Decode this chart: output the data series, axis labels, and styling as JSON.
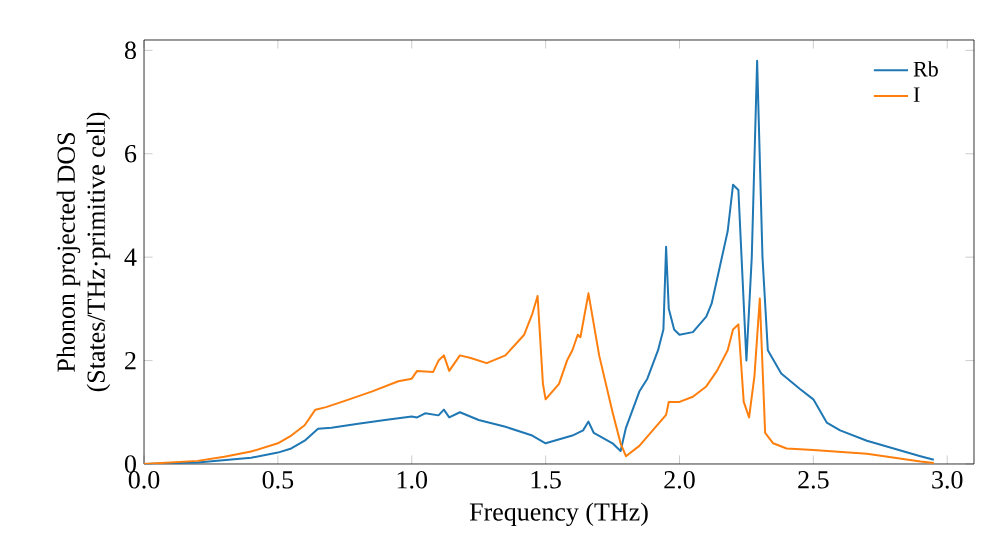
{
  "chart_data": {
    "type": "line",
    "xlabel": "Frequency (THz)",
    "ylabel": "Phonon projected DOS\n(States/THz·primitive cell)",
    "xlim": [
      0,
      3.1
    ],
    "ylim": [
      0,
      8.2
    ],
    "xticks": [
      {
        "value": 0,
        "label": "0.0"
      },
      0.5,
      {
        "value": 1,
        "label": "1.0"
      },
      1.5,
      {
        "value": 2,
        "label": "2.0"
      },
      2.5,
      {
        "value": 3,
        "label": "3.0"
      }
    ],
    "yticks": [
      0,
      2,
      4,
      6,
      8
    ],
    "legend": "top right",
    "grid": false,
    "series": [
      {
        "name": "Rb",
        "color": "#1f77b4",
        "x": [
          0,
          0.2,
          0.4,
          0.5,
          0.55,
          0.6,
          0.65,
          0.7,
          0.8,
          0.9,
          1.0,
          1.02,
          1.05,
          1.1,
          1.12,
          1.14,
          1.18,
          1.25,
          1.35,
          1.45,
          1.5,
          1.6,
          1.64,
          1.66,
          1.68,
          1.75,
          1.78,
          1.8,
          1.85,
          1.88,
          1.92,
          1.94,
          1.95,
          1.96,
          1.98,
          2.0,
          2.05,
          2.1,
          2.12,
          2.15,
          2.18,
          2.2,
          2.22,
          2.25,
          2.27,
          2.29,
          2.31,
          2.33,
          2.38,
          2.45,
          2.5,
          2.55,
          2.6,
          2.7,
          2.8,
          2.9,
          2.95
        ],
        "values": [
          0,
          0.03,
          0.12,
          0.22,
          0.3,
          0.45,
          0.68,
          0.7,
          0.78,
          0.85,
          0.92,
          0.9,
          0.98,
          0.94,
          1.05,
          0.9,
          1.0,
          0.85,
          0.72,
          0.55,
          0.4,
          0.55,
          0.65,
          0.82,
          0.6,
          0.4,
          0.25,
          0.7,
          1.4,
          1.65,
          2.2,
          2.6,
          4.2,
          3.0,
          2.6,
          2.5,
          2.55,
          2.85,
          3.1,
          3.8,
          4.5,
          5.4,
          5.3,
          2.0,
          4.0,
          7.8,
          4.0,
          2.2,
          1.75,
          1.45,
          1.25,
          0.8,
          0.65,
          0.45,
          0.3,
          0.15,
          0.08
        ]
      },
      {
        "name": "I",
        "color": "#ff7f0e",
        "x": [
          0,
          0.2,
          0.3,
          0.4,
          0.5,
          0.55,
          0.6,
          0.64,
          0.68,
          0.75,
          0.85,
          0.95,
          1.0,
          1.02,
          1.08,
          1.1,
          1.12,
          1.14,
          1.18,
          1.22,
          1.28,
          1.35,
          1.42,
          1.45,
          1.47,
          1.49,
          1.5,
          1.55,
          1.58,
          1.6,
          1.62,
          1.63,
          1.66,
          1.7,
          1.75,
          1.78,
          1.8,
          1.85,
          1.9,
          1.95,
          1.96,
          2.0,
          2.05,
          2.1,
          2.14,
          2.18,
          2.2,
          2.22,
          2.24,
          2.26,
          2.28,
          2.3,
          2.32,
          2.35,
          2.4,
          2.5,
          2.7,
          2.9,
          2.95
        ],
        "values": [
          0,
          0.06,
          0.14,
          0.24,
          0.4,
          0.55,
          0.75,
          1.05,
          1.1,
          1.22,
          1.4,
          1.6,
          1.65,
          1.8,
          1.78,
          2.0,
          2.1,
          1.8,
          2.1,
          2.05,
          1.95,
          2.1,
          2.5,
          2.9,
          3.25,
          1.55,
          1.25,
          1.55,
          2.0,
          2.2,
          2.5,
          2.45,
          3.3,
          2.1,
          1.0,
          0.4,
          0.15,
          0.35,
          0.65,
          0.95,
          1.2,
          1.2,
          1.3,
          1.5,
          1.8,
          2.2,
          2.6,
          2.7,
          1.2,
          0.9,
          1.7,
          3.2,
          0.6,
          0.4,
          0.3,
          0.27,
          0.2,
          0.05,
          0.02
        ]
      }
    ]
  }
}
